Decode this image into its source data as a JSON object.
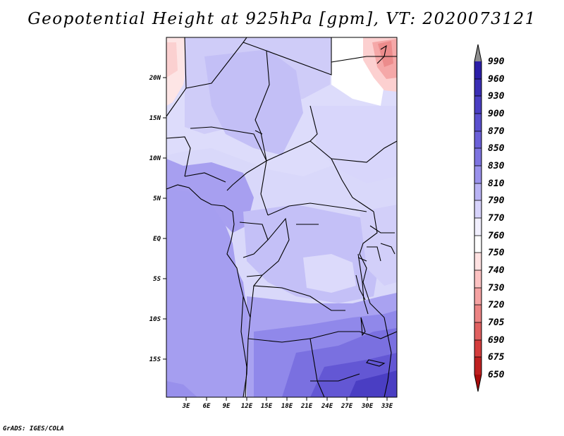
{
  "title": "Geopotential Height at 925hPa [gpm], VT: 2020073121",
  "credit": "GrADS: IGES/COLA",
  "map": {
    "lat_labels": [
      "20N",
      "15N",
      "10N",
      "5N",
      "EQ",
      "5S",
      "10S",
      "15S"
    ],
    "lon_labels": [
      "3E",
      "6E",
      "9E",
      "12E",
      "15E",
      "18E",
      "21E",
      "24E",
      "27E",
      "30E",
      "33E"
    ]
  },
  "colorbar": {
    "labels": [
      "990",
      "960",
      "930",
      "900",
      "870",
      "850",
      "830",
      "810",
      "790",
      "770",
      "760",
      "750",
      "740",
      "730",
      "720",
      "705",
      "690",
      "675",
      "650"
    ],
    "colors": [
      "#8e8e8e",
      "#2b1ea8",
      "#3a2eb5",
      "#4a3ec3",
      "#5a4fce",
      "#6b60d8",
      "#7d73e0",
      "#9a91ec",
      "#b9b3f4",
      "#d7d3fb",
      "#f1effe",
      "#ffffff",
      "#ffe1e1",
      "#fcc2c2",
      "#f5a2a2",
      "#ec8383",
      "#e06060",
      "#d43c3c",
      "#bf2020",
      "#a80c0c"
    ]
  }
}
